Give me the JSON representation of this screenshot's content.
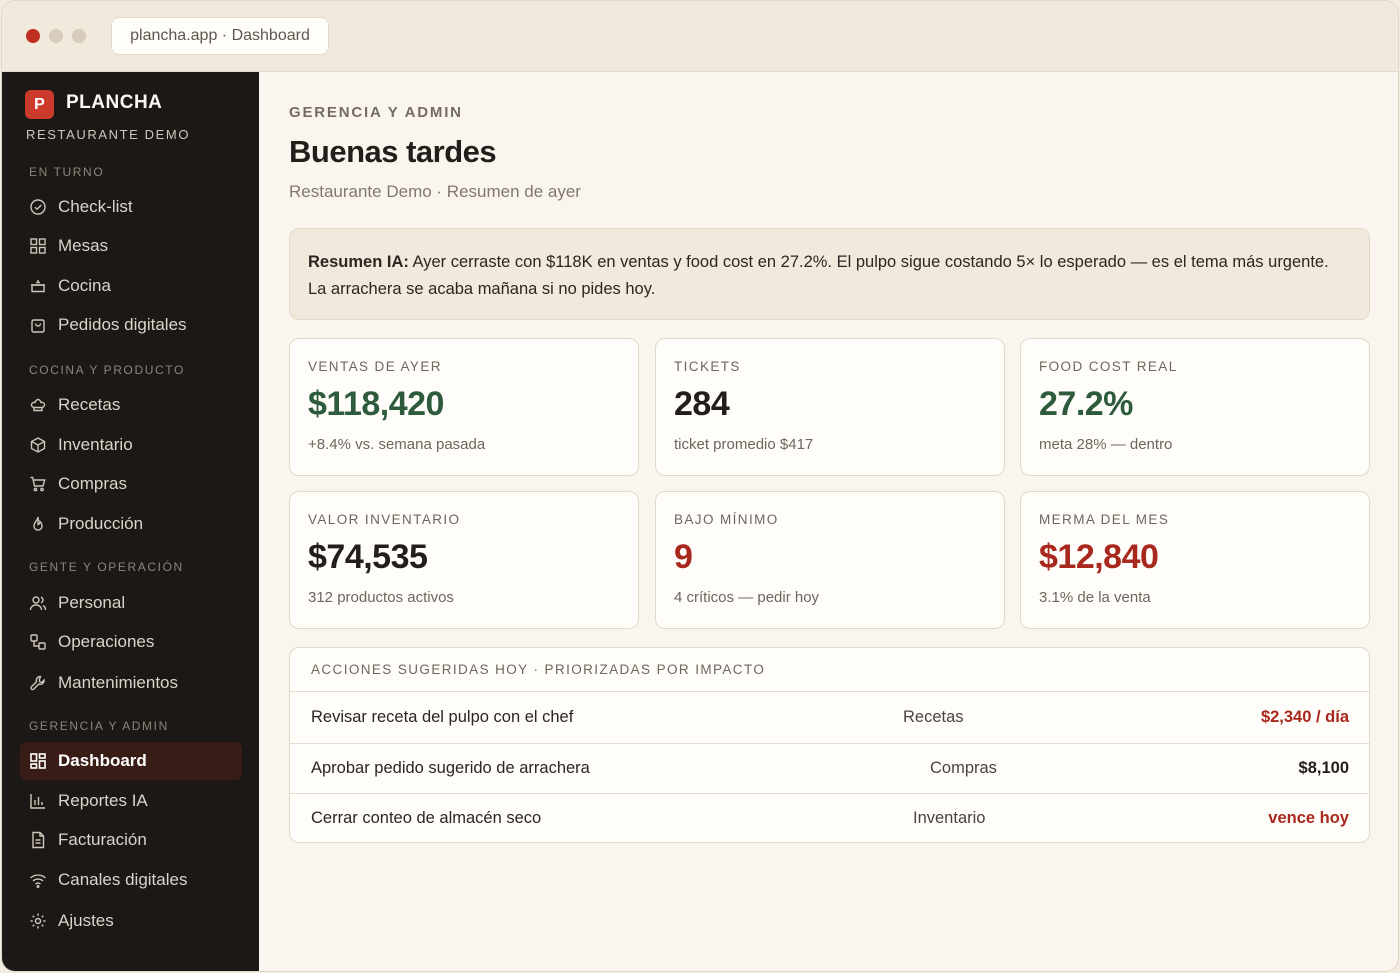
{
  "browser": {
    "url": "plancha.app · Dashboard"
  },
  "brand": {
    "logo_letter": "P",
    "name": "PLANCHA",
    "subtitle": "RESTAURANTE DEMO"
  },
  "sidebar": {
    "sections": [
      {
        "label": "EN TURNO",
        "items": [
          {
            "label": "Check-list",
            "icon": "check-circle-icon"
          },
          {
            "label": "Mesas",
            "icon": "grid-icon"
          },
          {
            "label": "Cocina",
            "icon": "cooking-pot-icon"
          },
          {
            "label": "Pedidos digitales",
            "icon": "shopping-bag-icon"
          }
        ]
      },
      {
        "label": "COCINA Y PRODUCTO",
        "items": [
          {
            "label": "Recetas",
            "icon": "chef-hat-icon"
          },
          {
            "label": "Inventario",
            "icon": "box-icon"
          },
          {
            "label": "Compras",
            "icon": "cart-icon"
          },
          {
            "label": "Producción",
            "icon": "flame-icon"
          }
        ]
      },
      {
        "label": "GENTE Y OPERACIÓN",
        "items": [
          {
            "label": "Personal",
            "icon": "users-icon"
          },
          {
            "label": "Operaciones",
            "icon": "workflow-icon"
          },
          {
            "label": "Mantenimientos",
            "icon": "wrench-icon"
          }
        ]
      },
      {
        "label": "GERENCIA Y ADMIN",
        "items": [
          {
            "label": "Dashboard",
            "icon": "dashboard-icon",
            "active": true
          },
          {
            "label": "Reportes IA",
            "icon": "bar-chart-icon"
          },
          {
            "label": "Facturación",
            "icon": "file-text-icon"
          },
          {
            "label": "Canales digitales",
            "icon": "wifi-icon"
          },
          {
            "label": "Ajustes",
            "icon": "gear-icon"
          }
        ]
      }
    ]
  },
  "header": {
    "eyebrow": "GERENCIA Y ADMIN",
    "title": "Buenas tardes",
    "subtitle": "Restaurante Demo · Resumen de ayer"
  },
  "ai_summary": {
    "label": "Resumen IA:",
    "text": " Ayer cerraste con $118K en ventas y food cost en 27.2%. El pulpo sigue costando 5× lo esperado — es el tema más urgente. La arrachera se acaba mañana si no pides hoy."
  },
  "kpis": [
    {
      "label": "VENTAS DE AYER",
      "value": "$118,420",
      "note": "+8.4% vs. semana pasada",
      "tone": "green"
    },
    {
      "label": "TICKETS",
      "value": "284",
      "note": "ticket promedio $417",
      "tone": "dark"
    },
    {
      "label": "FOOD COST REAL",
      "value": "27.2%",
      "note": "meta 28% — dentro",
      "tone": "green"
    },
    {
      "label": "VALOR INVENTARIO",
      "value": "$74,535",
      "note": "312 productos activos",
      "tone": "dark"
    },
    {
      "label": "BAJO MÍNIMO",
      "value": "9",
      "note": "4 críticos — pedir hoy",
      "tone": "red"
    },
    {
      "label": "MERMA DEL MES",
      "value": "$12,840",
      "note": "3.1% de la venta",
      "tone": "red"
    }
  ],
  "actions": {
    "header": "ACCIONES SUGERIDAS HOY · PRIORIZADAS POR IMPACTO",
    "rows": [
      {
        "title": "Revisar receta del pulpo con el chef",
        "module": "Recetas",
        "value": "$2,340 / día",
        "tone": "red"
      },
      {
        "title": "Aprobar pedido sugerido de arrachera",
        "module": "Compras",
        "value": "$8,100",
        "tone": "dark"
      },
      {
        "title": "Cerrar conteo de almacén seco",
        "module": "Inventario",
        "value": "vence hoy",
        "tone": "red"
      }
    ]
  },
  "colors": {
    "green": "#2d5b3c",
    "red": "#a8281d",
    "dark": "#221e1a",
    "accent": "#cc3a2c"
  }
}
